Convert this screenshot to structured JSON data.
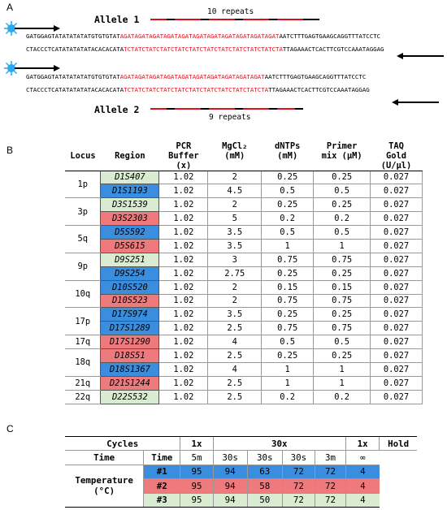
{
  "panels": {
    "a": "A",
    "b": "B",
    "c": "C"
  },
  "panel_a": {
    "allele1": {
      "label": "Allele 1",
      "repeats": "10 repeats",
      "seq1_flank_left": "GATGGAGTATATATATATGTGTGTAT",
      "seq1_repeat": "AGATAGATAGATAGATAGATAGATAGATAGATAGATAGATAGAT",
      "seq1_flank_right": "AATCTTTGAGTGAAGCAGGTTTATCCTC",
      "seq2_flank_left": "CTACCCTCATATATATATACACACATA",
      "seq2_repeat": "TCTATCTATCTATCTATCTATCTATCTATCTATCTATCTATCTA",
      "seq2_flank_right": "TTAGAAACTCACTTCGTCCAAATAGGAG"
    },
    "allele2": {
      "label": "Allele 2",
      "repeats": "9 repeats",
      "seq1_flank_left": "GATGGAGTATATATATATGTGTGTAT",
      "seq1_repeat": "AGATAGATAGATAGATAGATAGATAGATAGATAGATAGAT",
      "seq1_flank_right": "AATCTTTGAGTGAAGCAGGTTTATCCTC",
      "seq2_flank_left": "CTACCCTCATATATATATACACACATA",
      "seq2_repeat": "TCTATCTATCTATCTATCTATCTATCTATCTATCTATCTA",
      "seq2_flank_right": "TTAGAAACTCACTTCGTCCAAATAGGAG"
    },
    "colors": {
      "repeat_red": "#e0101a",
      "dye_blue": "#29a9ee"
    },
    "icons": [
      "fluorescent-dye-icon",
      "forward-primer-arrow-icon",
      "reverse-primer-arrow-icon"
    ]
  },
  "panel_b": {
    "headers": {
      "locus": "Locus",
      "region": "Region",
      "pcr1": "PCR",
      "pcr2": "Buffer",
      "pcr3": "(x)",
      "mg1": "MgCl₂",
      "mg2": "(mM)",
      "dntp1": "dNTPs",
      "dntp2": "(mM)",
      "primer1": "Primer",
      "primer2": "mix (μM)",
      "taq1": "TAQ",
      "taq2": "Gold",
      "taq3": "(U/μl)"
    },
    "rows": [
      {
        "locus": "1p",
        "region": "D1S407",
        "color": "g",
        "pcr": "1.02",
        "mg": "2",
        "dntp": "0.25",
        "primer": "0.25",
        "taq": "0.027"
      },
      {
        "locus": "",
        "region": "D1S1193",
        "color": "b",
        "pcr": "1.02",
        "mg": "4.5",
        "dntp": "0.5",
        "primer": "0.5",
        "taq": "0.027"
      },
      {
        "locus": "3p",
        "region": "D3S1539",
        "color": "g",
        "pcr": "1.02",
        "mg": "2",
        "dntp": "0.25",
        "primer": "0.25",
        "taq": "0.027"
      },
      {
        "locus": "",
        "region": "D3S2303",
        "color": "r",
        "pcr": "1.02",
        "mg": "5",
        "dntp": "0.2",
        "primer": "0.2",
        "taq": "0.027"
      },
      {
        "locus": "5q",
        "region": "D5S592",
        "color": "b",
        "pcr": "1.02",
        "mg": "3.5",
        "dntp": "0.5",
        "primer": "0.5",
        "taq": "0.027"
      },
      {
        "locus": "",
        "region": "D5S615",
        "color": "r",
        "pcr": "1.02",
        "mg": "3.5",
        "dntp": "1",
        "primer": "1",
        "taq": "0.027"
      },
      {
        "locus": "9p",
        "region": "D9S251",
        "color": "g",
        "pcr": "1.02",
        "mg": "3",
        "dntp": "0.75",
        "primer": "0.75",
        "taq": "0.027"
      },
      {
        "locus": "",
        "region": "D9S254",
        "color": "b",
        "pcr": "1.02",
        "mg": "2.75",
        "dntp": "0.25",
        "primer": "0.25",
        "taq": "0.027"
      },
      {
        "locus": "10q",
        "region": "D10S520",
        "color": "b",
        "pcr": "1.02",
        "mg": "2",
        "dntp": "0.15",
        "primer": "0.15",
        "taq": "0.027"
      },
      {
        "locus": "",
        "region": "D10S523",
        "color": "r",
        "pcr": "1.02",
        "mg": "2",
        "dntp": "0.75",
        "primer": "0.75",
        "taq": "0.027"
      },
      {
        "locus": "17p",
        "region": "D17S974",
        "color": "b",
        "pcr": "1.02",
        "mg": "3.5",
        "dntp": "0.25",
        "primer": "0.25",
        "taq": "0.027"
      },
      {
        "locus": "",
        "region": "D17S1289",
        "color": "b",
        "pcr": "1.02",
        "mg": "2.5",
        "dntp": "0.75",
        "primer": "0.75",
        "taq": "0.027"
      },
      {
        "locus": "17q",
        "region": "D17S1290",
        "color": "r",
        "pcr": "1.02",
        "mg": "4",
        "dntp": "0.5",
        "primer": "0.5",
        "taq": "0.027"
      },
      {
        "locus": "18q",
        "region": "D18S51",
        "color": "r",
        "pcr": "1.02",
        "mg": "2.5",
        "dntp": "0.25",
        "primer": "0.25",
        "taq": "0.027"
      },
      {
        "locus": "",
        "region": "D18S1367",
        "color": "b",
        "pcr": "1.02",
        "mg": "4",
        "dntp": "1",
        "primer": "1",
        "taq": "0.027"
      },
      {
        "locus": "21q",
        "region": "D21S1244",
        "color": "r",
        "pcr": "1.02",
        "mg": "2.5",
        "dntp": "1",
        "primer": "1",
        "taq": "0.027"
      },
      {
        "locus": "22q",
        "region": "D22S532",
        "color": "g",
        "pcr": "1.02",
        "mg": "2.5",
        "dntp": "0.2",
        "primer": "0.2",
        "taq": "0.027"
      }
    ],
    "colors": {
      "g": "#d9ecd1",
      "b": "#3b8ede",
      "r": "#ef7a7e"
    }
  },
  "panel_c": {
    "cycles_label": "Cycles",
    "c1x_a": "1x",
    "c30x": "30x",
    "c1x_b": "1x",
    "hold": "Hold",
    "time_label": "Time",
    "time_label2": "Time",
    "times": [
      "5m",
      "30s",
      "30s",
      "30s",
      "3m",
      "∞"
    ],
    "temp_label": "Temperature",
    "temp_unit": "(°C)",
    "programs": [
      {
        "id": "#1",
        "vals": [
          "95",
          "94",
          "63",
          "72",
          "72",
          "4"
        ]
      },
      {
        "id": "#2",
        "vals": [
          "95",
          "94",
          "58",
          "72",
          "72",
          "4"
        ]
      },
      {
        "id": "#3",
        "vals": [
          "95",
          "94",
          "50",
          "72",
          "72",
          "4"
        ]
      }
    ]
  }
}
